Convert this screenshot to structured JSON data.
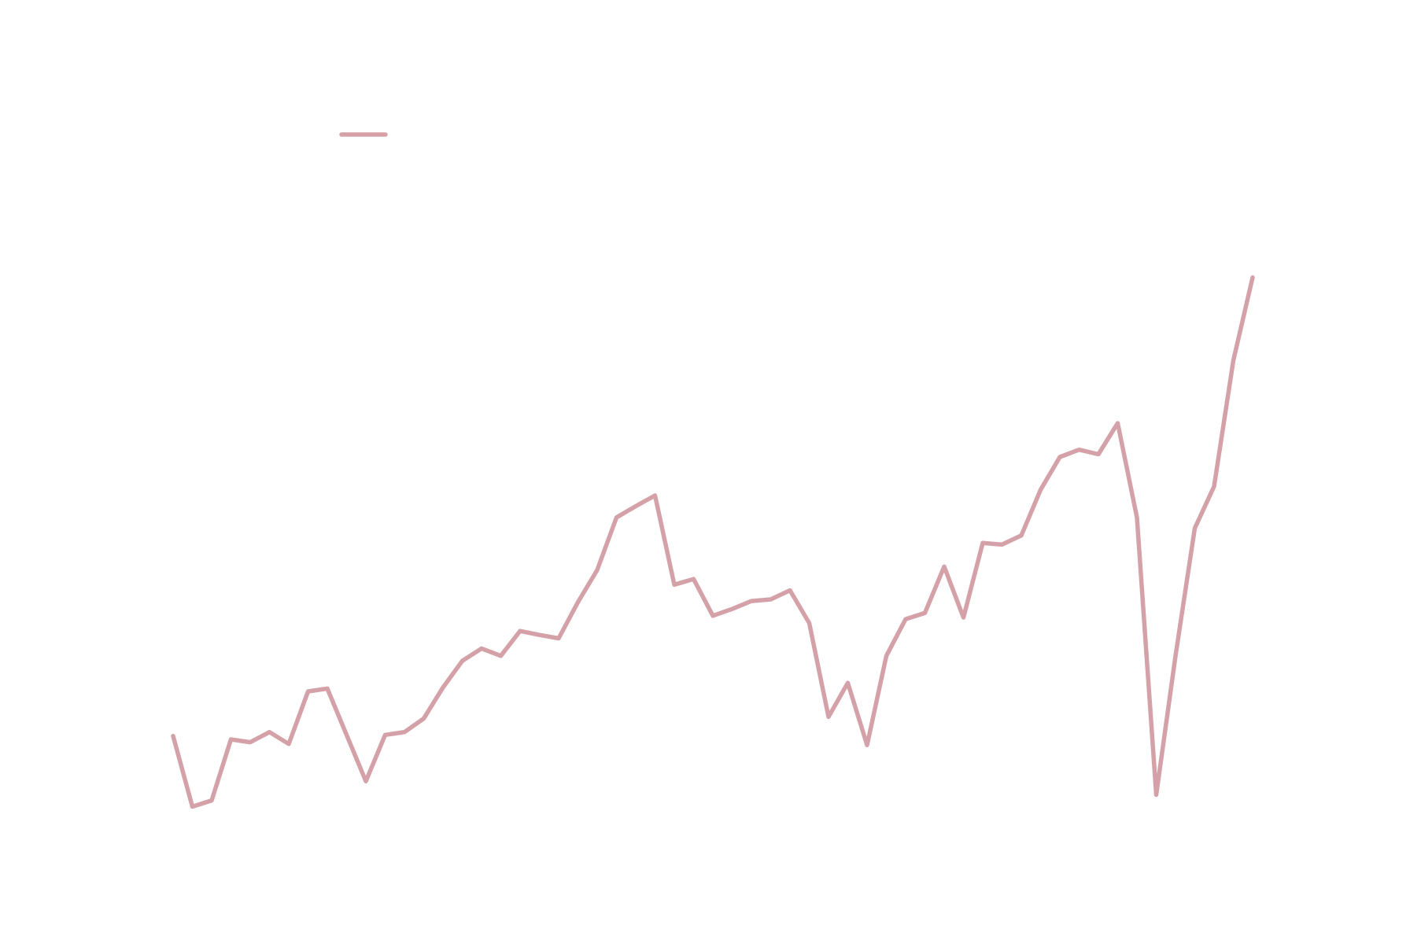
{
  "chart_data": {
    "type": "line",
    "categories": [
      null,
      null,
      null,
      null,
      null,
      null,
      null,
      null,
      null,
      null,
      null,
      null,
      null,
      null,
      null,
      null,
      null,
      null,
      null,
      null,
      null,
      null,
      null,
      null,
      null,
      null,
      null,
      null,
      null,
      null,
      null,
      null,
      null,
      null,
      null,
      null,
      null,
      null,
      null,
      null,
      null,
      null,
      null,
      null,
      null,
      null,
      null,
      null,
      null,
      null,
      null,
      null,
      null,
      null,
      null,
      null,
      null
    ],
    "series": [
      {
        "color": "#d5a1a8",
        "values": [
          14.8,
          2.3,
          3.4,
          14.2,
          13.7,
          15.5,
          13.4,
          22.7,
          23.2,
          15.0,
          6.8,
          15.0,
          15.5,
          17.9,
          23.4,
          28.1,
          30.3,
          29.0,
          33.4,
          32.7,
          32.1,
          38.5,
          44.2,
          53.5,
          55.5,
          57.4,
          41.6,
          42.6,
          36.1,
          37.3,
          38.7,
          39.0,
          40.6,
          34.8,
          18.2,
          24.2,
          13.2,
          29.0,
          35.5,
          36.6,
          44.8,
          35.8,
          49.0,
          48.7,
          50.3,
          58.4,
          64.2,
          65.5,
          64.7,
          70.2,
          53.5,
          4.4,
          29.0,
          51.6,
          59.0,
          81.3,
          96.0
        ]
      }
    ],
    "ylim": [
      0,
      100
    ],
    "legend": "upper left"
  }
}
